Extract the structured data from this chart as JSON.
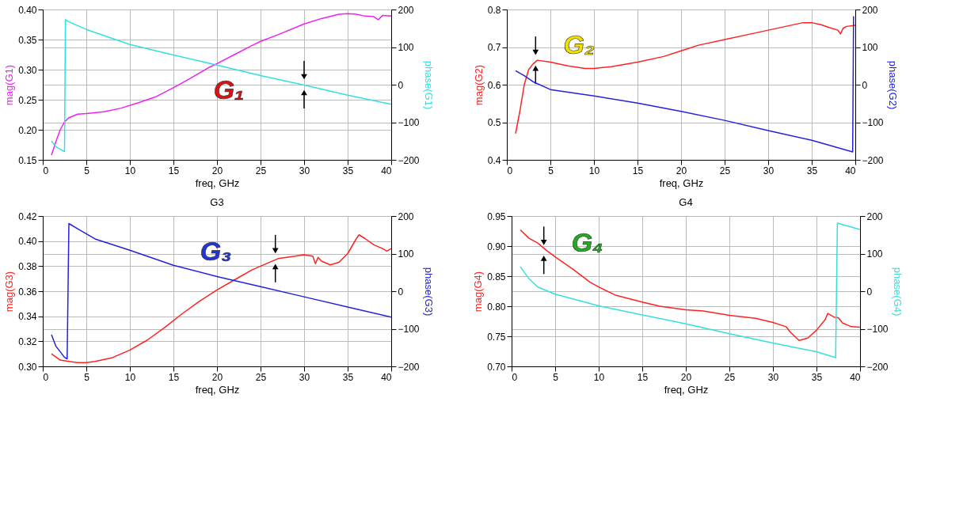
{
  "chart_data": [
    {
      "type": "line",
      "xlabel": "freq, GHz",
      "ylabel": "mag(G1)",
      "y2label": "phase(G1)",
      "xlim": [
        0,
        40
      ],
      "xticks": [
        0,
        5,
        10,
        15,
        20,
        25,
        30,
        35,
        40
      ],
      "ylim": [
        0.15,
        0.4
      ],
      "yticks": [
        0.15,
        {
          "value": 0.2,
          "label": "0.20"
        },
        0.25,
        {
          "value": 0.3,
          "label": "0.30"
        },
        0.35,
        {
          "value": 0.4,
          "label": "0.40"
        }
      ],
      "y2lim": [
        -200,
        200
      ],
      "y2ticks": [
        -200,
        -100,
        0,
        100,
        200
      ],
      "grid": true,
      "annotations": [
        {
          "text": "G₁",
          "x": 30,
          "y": 0.275
        }
      ],
      "series": [
        {
          "color": "#ee22ee",
          "axis": "y",
          "x": [
            1,
            1.5,
            2,
            2.5,
            3,
            4,
            5,
            7,
            9,
            11,
            13,
            15,
            17,
            19,
            20,
            22,
            24,
            25,
            27,
            30,
            32,
            34,
            35,
            36,
            37,
            38,
            38.5,
            39,
            40
          ],
          "values": [
            0.158,
            0.18,
            0.2,
            0.213,
            0.22,
            0.226,
            0.227,
            0.23,
            0.236,
            0.245,
            0.255,
            0.27,
            0.286,
            0.303,
            0.31,
            0.325,
            0.34,
            0.347,
            0.358,
            0.376,
            0.385,
            0.392,
            0.393,
            0.392,
            0.389,
            0.388,
            0.383,
            0.39,
            0.389
          ]
        },
        {
          "color": "#33e0e0",
          "axis": "y2",
          "x": [
            1,
            1.5,
            2.5,
            2.6,
            3,
            5,
            10,
            15,
            20,
            25,
            30,
            35,
            40
          ],
          "values": [
            -150,
            -165,
            -178,
            173,
            167,
            147,
            107,
            79,
            52,
            24,
            -1,
            -28,
            -52
          ]
        }
      ]
    },
    {
      "type": "line",
      "xlabel": "freq, GHz",
      "ylabel": "mag(G2)",
      "y2label": "phase(G2)",
      "xlim": [
        0,
        40
      ],
      "xticks": [
        0,
        5,
        10,
        15,
        20,
        25,
        30,
        35,
        40
      ],
      "ylim": [
        0.4,
        0.8
      ],
      "yticks": [
        0.4,
        0.5,
        0.6,
        0.7,
        0.8
      ],
      "y2lim": [
        -200,
        200
      ],
      "y2ticks": [
        -200,
        -100,
        0,
        100,
        200
      ],
      "grid": true,
      "annotations": [
        {
          "text": "G₂",
          "x": 3.3,
          "y": 0.665
        }
      ],
      "series": [
        {
          "color": "#ff2222",
          "axis": "y",
          "x": [
            1,
            1.5,
            2,
            2.5,
            3,
            3.5,
            5,
            7,
            9,
            10,
            12,
            15,
            18,
            20,
            22,
            25,
            28,
            30,
            32,
            34,
            35,
            36,
            37,
            38,
            38.3,
            38.6,
            39,
            40
          ],
          "values": [
            0.47,
            0.53,
            0.6,
            0.64,
            0.655,
            0.665,
            0.66,
            0.65,
            0.643,
            0.643,
            0.648,
            0.66,
            0.675,
            0.69,
            0.705,
            0.72,
            0.735,
            0.745,
            0.755,
            0.765,
            0.765,
            0.76,
            0.752,
            0.745,
            0.735,
            0.75,
            0.755,
            0.758
          ]
        },
        {
          "color": "#2222dd",
          "axis": "y2",
          "x": [
            1,
            2,
            3,
            5,
            10,
            15,
            20,
            25,
            30,
            35,
            39.7,
            39.8
          ],
          "values": [
            37,
            24,
            8,
            -13,
            -30,
            -49,
            -71,
            -95,
            -122,
            -148,
            -179,
            182
          ]
        }
      ]
    },
    {
      "type": "line",
      "title": "G3",
      "xlabel": "freq, GHz",
      "ylabel": "mag(G3)",
      "y2label": "phase(G3)",
      "xlim": [
        0,
        40
      ],
      "xticks": [
        0,
        5,
        10,
        15,
        20,
        25,
        30,
        35,
        40
      ],
      "ylim": [
        0.3,
        0.42
      ],
      "yticks": [
        {
          "value": 0.3,
          "label": "0.30"
        },
        0.32,
        0.34,
        0.36,
        0.38,
        {
          "value": 0.4,
          "label": "0.40"
        },
        0.42
      ],
      "y2lim": [
        -200,
        200
      ],
      "y2ticks": [
        -200,
        -100,
        0,
        100,
        200
      ],
      "grid": true,
      "annotations": [
        {
          "text": "G₃",
          "x": 26.7,
          "y": 0.386
        }
      ],
      "series": [
        {
          "color": "#ff2222",
          "axis": "y",
          "x": [
            1,
            2,
            3,
            4,
            5,
            6,
            8,
            10,
            12,
            14,
            16,
            18,
            20,
            22,
            24,
            26,
            27,
            28,
            30,
            31,
            31.3,
            31.6,
            32,
            33,
            34,
            35,
            36,
            36.3,
            37,
            38,
            39,
            39.5,
            40
          ],
          "values": [
            0.31,
            0.305,
            0.304,
            0.303,
            0.303,
            0.304,
            0.307,
            0.313,
            0.321,
            0.331,
            0.342,
            0.352,
            0.361,
            0.369,
            0.377,
            0.383,
            0.386,
            0.387,
            0.389,
            0.388,
            0.382,
            0.387,
            0.384,
            0.381,
            0.383,
            0.39,
            0.402,
            0.405,
            0.402,
            0.397,
            0.394,
            0.392,
            0.394
          ]
        },
        {
          "color": "#2222dd",
          "axis": "y2",
          "x": [
            1,
            1.5,
            2.5,
            2.8,
            2.9,
            3,
            4,
            6,
            10,
            15,
            20,
            25,
            30,
            35,
            40
          ],
          "values": [
            -116,
            -146,
            -176,
            -180,
            2,
            180,
            166,
            139,
            109,
            69,
            39,
            12,
            -15,
            -42,
            -69
          ]
        }
      ]
    },
    {
      "type": "line",
      "title": "G4",
      "xlabel": "freq, GHz",
      "ylabel": "mag(G4)",
      "y2label": "phase(G4)",
      "xlim": [
        0,
        40
      ],
      "xticks": [
        0,
        5,
        10,
        15,
        20,
        25,
        30,
        35,
        40
      ],
      "ylim": [
        0.7,
        0.95
      ],
      "yticks": [
        {
          "value": 0.7,
          "label": "0.70"
        },
        0.75,
        {
          "value": 0.8,
          "label": "0.80"
        },
        0.85,
        {
          "value": 0.9,
          "label": "0.90"
        },
        0.95
      ],
      "y2lim": [
        -200,
        200
      ],
      "y2ticks": [
        -200,
        -100,
        0,
        100,
        200
      ],
      "grid": true,
      "annotations": [
        {
          "text": "G₄",
          "x": 3.7,
          "y": 0.893
        }
      ],
      "series": [
        {
          "color": "#ff2222",
          "axis": "y",
          "x": [
            1,
            2,
            3,
            4,
            5,
            7,
            9,
            10,
            12,
            15,
            17,
            20,
            22,
            25,
            28,
            30,
            31.5,
            32,
            33,
            34,
            35,
            36,
            36.3,
            37,
            37.5,
            38,
            39,
            40
          ],
          "values": [
            0.927,
            0.913,
            0.905,
            0.893,
            0.882,
            0.862,
            0.84,
            0.832,
            0.818,
            0.807,
            0.8,
            0.794,
            0.792,
            0.785,
            0.78,
            0.773,
            0.766,
            0.757,
            0.743,
            0.747,
            0.76,
            0.778,
            0.788,
            0.782,
            0.781,
            0.772,
            0.766,
            0.765
          ]
        },
        {
          "color": "#33e0e0",
          "axis": "y2",
          "x": [
            1,
            2,
            3,
            5,
            10,
            15,
            20,
            25,
            30,
            35,
            37.2,
            37.3,
            37.4,
            40
          ],
          "values": [
            65,
            33,
            11,
            -8,
            -39,
            -63,
            -87,
            -113,
            -138,
            -161,
            -177,
            4,
            181,
            164
          ]
        }
      ]
    }
  ]
}
